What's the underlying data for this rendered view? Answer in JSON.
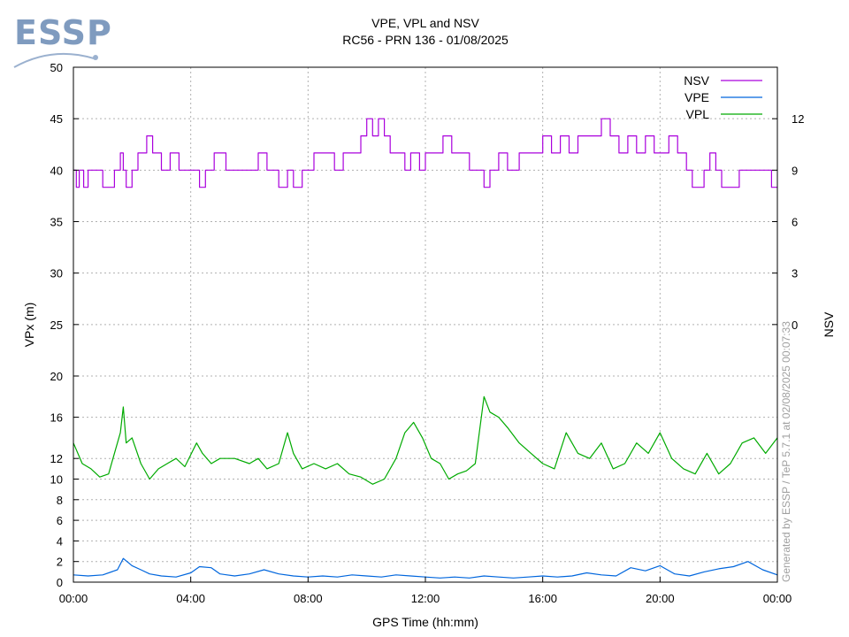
{
  "logo": {
    "text": "ESSP"
  },
  "credit": "Generated by ESSP / TeP 5.7.1 at 02/08/2025 00:07:33",
  "chart_data": {
    "type": "line",
    "title": "VPE, VPL and NSV",
    "subtitle": "RC56 - PRN 136 - 01/08/2025",
    "xlabel": "GPS Time (hh:mm)",
    "ylabel": "VPx (m)",
    "y2label": "NSV",
    "x_range_hours": [
      0,
      24
    ],
    "x_ticks": [
      "00:00",
      "04:00",
      "08:00",
      "12:00",
      "16:00",
      "20:00",
      "00:00"
    ],
    "y_ticks": [
      0,
      2,
      4,
      6,
      8,
      10,
      12,
      16,
      20,
      25,
      30,
      35,
      40,
      45,
      50
    ],
    "y_scale": "piecewise (0-20 expanded, 20-50 compressed)",
    "y2_ticks": [
      0,
      3,
      6,
      9,
      12
    ],
    "grid": true,
    "legend_position": "top-right",
    "series": [
      {
        "name": "NSV",
        "color": "#aa00dd",
        "axis": "y2",
        "step": true,
        "x": [
          0.0,
          0.1,
          0.2,
          0.35,
          0.5,
          1.0,
          1.2,
          1.4,
          1.6,
          1.7,
          1.8,
          2.0,
          2.2,
          2.5,
          2.7,
          3.0,
          3.3,
          3.6,
          4.0,
          4.3,
          4.5,
          4.8,
          5.2,
          5.6,
          6.0,
          6.3,
          6.6,
          7.0,
          7.3,
          7.5,
          7.8,
          8.2,
          8.6,
          8.9,
          9.2,
          9.5,
          9.8,
          10.0,
          10.2,
          10.4,
          10.6,
          10.8,
          11.0,
          11.3,
          11.5,
          11.8,
          12.0,
          12.3,
          12.6,
          12.9,
          13.2,
          13.5,
          13.8,
          14.0,
          14.2,
          14.5,
          14.8,
          15.2,
          15.6,
          16.0,
          16.3,
          16.6,
          16.9,
          17.2,
          17.5,
          17.8,
          18.0,
          18.3,
          18.6,
          18.9,
          19.2,
          19.5,
          19.8,
          20.0,
          20.3,
          20.6,
          20.9,
          21.1,
          21.3,
          21.5,
          21.7,
          21.9,
          22.1,
          22.4,
          22.7,
          23.0,
          23.3,
          23.6,
          23.8,
          24.0
        ],
        "values": [
          9,
          8,
          9,
          8,
          9,
          8,
          8,
          9,
          10,
          9,
          8,
          9,
          10,
          11,
          10,
          9,
          10,
          9,
          9,
          8,
          9,
          10,
          9,
          9,
          9,
          10,
          9,
          8,
          9,
          8,
          9,
          10,
          10,
          9,
          10,
          10,
          11,
          12,
          11,
          12,
          11,
          10,
          10,
          9,
          10,
          9,
          10,
          10,
          11,
          10,
          10,
          9,
          9,
          8,
          9,
          10,
          9,
          10,
          10,
          11,
          10,
          11,
          10,
          11,
          11,
          11,
          12,
          11,
          10,
          11,
          10,
          11,
          10,
          10,
          11,
          10,
          9,
          8,
          8,
          9,
          10,
          9,
          8,
          8,
          9,
          9,
          9,
          9,
          8,
          8
        ]
      },
      {
        "name": "VPE",
        "color": "#0066dd",
        "axis": "y",
        "x": [
          0.0,
          0.5,
          1.0,
          1.5,
          1.7,
          2.0,
          2.3,
          2.6,
          3.0,
          3.5,
          4.0,
          4.3,
          4.7,
          5.0,
          5.5,
          6.0,
          6.5,
          7.0,
          7.5,
          8.0,
          8.5,
          9.0,
          9.5,
          10.0,
          10.5,
          11.0,
          11.5,
          12.0,
          12.5,
          13.0,
          13.5,
          14.0,
          14.5,
          15.0,
          15.5,
          16.0,
          16.5,
          17.0,
          17.5,
          18.0,
          18.5,
          19.0,
          19.5,
          20.0,
          20.5,
          21.0,
          21.5,
          22.0,
          22.5,
          23.0,
          23.5,
          24.0
        ],
        "values": [
          0.7,
          0.6,
          0.7,
          1.2,
          2.3,
          1.6,
          1.2,
          0.8,
          0.6,
          0.5,
          0.9,
          1.5,
          1.4,
          0.8,
          0.6,
          0.8,
          1.2,
          0.8,
          0.6,
          0.5,
          0.6,
          0.5,
          0.7,
          0.6,
          0.5,
          0.7,
          0.6,
          0.5,
          0.4,
          0.5,
          0.4,
          0.6,
          0.5,
          0.4,
          0.5,
          0.6,
          0.5,
          0.6,
          0.9,
          0.7,
          0.6,
          1.4,
          1.1,
          1.6,
          0.8,
          0.6,
          1.0,
          1.3,
          1.5,
          2.0,
          1.2,
          0.7
        ]
      },
      {
        "name": "VPL",
        "color": "#00aa00",
        "axis": "y",
        "x": [
          0.0,
          0.3,
          0.6,
          0.9,
          1.2,
          1.4,
          1.6,
          1.7,
          1.8,
          2.0,
          2.3,
          2.6,
          2.9,
          3.2,
          3.5,
          3.8,
          4.2,
          4.4,
          4.7,
          5.0,
          5.5,
          6.0,
          6.3,
          6.6,
          7.0,
          7.3,
          7.5,
          7.8,
          8.2,
          8.6,
          9.0,
          9.4,
          9.8,
          10.2,
          10.6,
          11.0,
          11.3,
          11.6,
          11.9,
          12.2,
          12.5,
          12.8,
          13.1,
          13.4,
          13.7,
          14.0,
          14.2,
          14.5,
          14.8,
          15.2,
          15.6,
          16.0,
          16.4,
          16.8,
          17.2,
          17.6,
          18.0,
          18.4,
          18.8,
          19.2,
          19.6,
          20.0,
          20.4,
          20.8,
          21.2,
          21.6,
          22.0,
          22.4,
          22.8,
          23.2,
          23.6,
          24.0
        ],
        "values": [
          13.5,
          11.5,
          11.0,
          10.2,
          10.5,
          12.5,
          14.5,
          17.0,
          13.5,
          14.0,
          11.5,
          10.0,
          11.0,
          11.5,
          12.0,
          11.2,
          13.5,
          12.5,
          11.5,
          12.0,
          12.0,
          11.5,
          12.0,
          11.0,
          11.5,
          14.5,
          12.5,
          11.0,
          11.5,
          11.0,
          11.5,
          10.5,
          10.2,
          9.5,
          10.0,
          12.0,
          14.5,
          15.5,
          14.0,
          12.0,
          11.5,
          10.0,
          10.5,
          10.8,
          11.5,
          18.0,
          16.5,
          16.0,
          15.0,
          13.5,
          12.5,
          11.5,
          11.0,
          14.5,
          12.5,
          12.0,
          13.5,
          11.0,
          11.5,
          13.5,
          12.5,
          14.5,
          12.0,
          11.0,
          10.5,
          12.5,
          10.5,
          11.5,
          13.5,
          14.0,
          12.5,
          14.0
        ]
      }
    ]
  }
}
